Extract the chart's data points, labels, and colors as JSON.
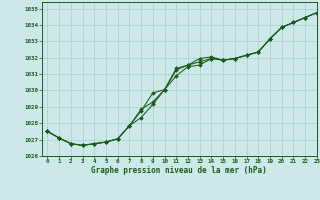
{
  "title": "Graphe pression niveau de la mer (hPa)",
  "bg_color": "#cce8e8",
  "plot_bg_color": "#cce8e8",
  "grid_color": "#aacece",
  "line_color": "#1a5c1a",
  "marker_color": "#1a5c1a",
  "xlim": [
    -0.5,
    23
  ],
  "ylim": [
    1026,
    1035.4
  ],
  "xticks": [
    0,
    1,
    2,
    3,
    4,
    5,
    6,
    7,
    8,
    9,
    10,
    11,
    12,
    13,
    14,
    15,
    16,
    17,
    18,
    19,
    20,
    21,
    22,
    23
  ],
  "yticks": [
    1026,
    1027,
    1028,
    1029,
    1030,
    1031,
    1032,
    1033,
    1034,
    1035
  ],
  "line1": [
    1027.5,
    1027.1,
    1026.75,
    1026.65,
    1026.75,
    1026.85,
    1027.05,
    1027.85,
    1028.75,
    1029.85,
    1030.05,
    1030.9,
    1031.45,
    1031.55,
    1031.95,
    1031.85,
    1031.95,
    1032.15,
    1032.35,
    1033.15,
    1033.85,
    1034.15,
    1034.45,
    1034.75
  ],
  "line2": [
    1027.5,
    1027.1,
    1026.75,
    1026.65,
    1026.75,
    1026.85,
    1027.05,
    1027.85,
    1028.35,
    1029.15,
    1030.05,
    1031.25,
    1031.55,
    1031.75,
    1031.95,
    1031.85,
    1031.95,
    1032.15,
    1032.35,
    1033.15,
    1033.85,
    1034.15,
    1034.45,
    1034.75
  ],
  "line3": [
    1027.5,
    1027.1,
    1026.75,
    1026.65,
    1026.75,
    1026.85,
    1027.05,
    1027.85,
    1028.85,
    1029.3,
    1030.05,
    1031.35,
    1031.55,
    1031.95,
    1032.05,
    1031.85,
    1031.95,
    1032.15,
    1032.35,
    1033.15,
    1033.85,
    1034.15,
    1034.45,
    1034.75
  ]
}
